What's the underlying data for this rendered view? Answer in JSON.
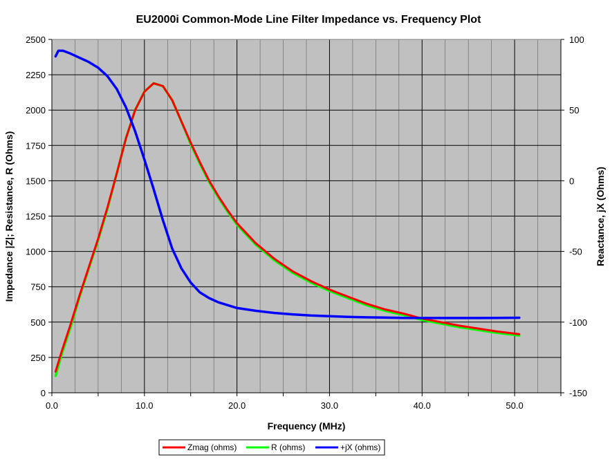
{
  "chart_data": {
    "type": "line",
    "title": "EU2000i Common-Mode Line Filter Impedance vs. Frequency Plot",
    "xlabel": "Frequency (MHz)",
    "ylabel_left": "Impedance |Z|; Resistance, R (Ohms)",
    "ylabel_right": "Reactance, jX (Ohms)",
    "xlim": [
      0,
      55
    ],
    "ylim_left": [
      0,
      2500
    ],
    "ylim_right": [
      -150,
      100
    ],
    "x_ticks": [
      0,
      10,
      20,
      30,
      40,
      50
    ],
    "x_tick_labels": [
      "0.0",
      "10.0",
      "20.0",
      "30.0",
      "40.0",
      "50.0"
    ],
    "y_left_ticks": [
      0,
      250,
      500,
      750,
      1000,
      1250,
      1500,
      1750,
      2000,
      2250,
      2500
    ],
    "y_left_tick_labels": [
      "0",
      "250",
      "500",
      "750",
      "1000",
      "1250",
      "1500",
      "1750",
      "2000",
      "2250",
      "2500"
    ],
    "y_right_ticks": [
      -150,
      -100,
      -50,
      0,
      50,
      100
    ],
    "y_right_tick_labels": [
      "-150",
      "-100",
      "-50",
      "0",
      "50",
      "100"
    ],
    "grid": true,
    "plot_background": "#c0c0c0",
    "legend_position": "bottom",
    "series": [
      {
        "name": "Zmag (ohms)",
        "color": "#ff0000",
        "axis": "left",
        "x": [
          0.4,
          1,
          2,
          3,
          4,
          5,
          6,
          7,
          8,
          9,
          10,
          11,
          12,
          13,
          14,
          15,
          16,
          17,
          18,
          19,
          20,
          22,
          24,
          26,
          28,
          30,
          32,
          34,
          36,
          38,
          40,
          42,
          44,
          46,
          48,
          50.5
        ],
        "y": [
          150,
          280,
          480,
          690,
          890,
          1090,
          1310,
          1550,
          1800,
          2000,
          2130,
          2190,
          2170,
          2070,
          1920,
          1770,
          1630,
          1500,
          1390,
          1290,
          1200,
          1060,
          950,
          860,
          790,
          730,
          680,
          630,
          590,
          560,
          525,
          500,
          475,
          455,
          435,
          415
        ]
      },
      {
        "name": "R (ohms)",
        "color": "#00ff00",
        "axis": "left",
        "x": [
          0.4,
          1,
          2,
          3,
          4,
          5,
          6,
          7,
          8,
          9,
          10,
          11,
          12,
          13,
          14,
          15,
          16,
          17,
          18,
          19,
          20,
          22,
          24,
          26,
          28,
          30,
          32,
          34,
          36,
          38,
          40,
          42,
          44,
          46,
          48,
          50.5
        ],
        "y": [
          120,
          260,
          460,
          680,
          880,
          1080,
          1300,
          1550,
          1800,
          2000,
          2130,
          2190,
          2170,
          2070,
          1920,
          1760,
          1620,
          1490,
          1380,
          1280,
          1190,
          1050,
          940,
          850,
          780,
          720,
          670,
          620,
          580,
          550,
          515,
          490,
          465,
          445,
          425,
          405
        ]
      },
      {
        "name": "+jX (ohms)",
        "color": "#0000ff",
        "axis": "right",
        "x": [
          0.4,
          0.7,
          1.2,
          2,
          3,
          4,
          5,
          6,
          7,
          8,
          9,
          10,
          11,
          12,
          13,
          14,
          15,
          16,
          17,
          18,
          20,
          22,
          24,
          26,
          28,
          30,
          32,
          34,
          36,
          38,
          40,
          42,
          44,
          46,
          48,
          50.5
        ],
        "y": [
          88,
          92,
          92,
          90,
          87,
          84,
          80,
          74,
          65,
          52,
          35,
          15,
          -6,
          -28,
          -48,
          -62,
          -72,
          -79,
          -83,
          -86,
          -90,
          -92,
          -93.5,
          -94.5,
          -95.3,
          -95.8,
          -96.3,
          -96.6,
          -96.8,
          -97,
          -97.1,
          -97.1,
          -97.1,
          -97.1,
          -97,
          -96.9
        ]
      }
    ]
  }
}
